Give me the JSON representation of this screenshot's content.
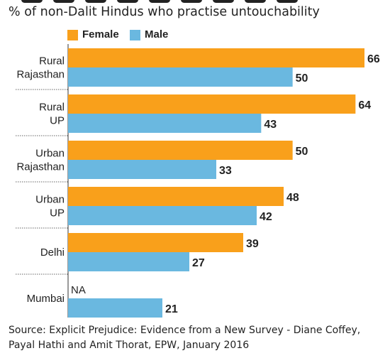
{
  "title": "% of non-Dalit Hindus who practise untouchability",
  "legend": [
    {
      "label": "Female",
      "color": "#f9a01b"
    },
    {
      "label": "Male",
      "color": "#6ab8e0"
    }
  ],
  "chart_data": {
    "type": "bar",
    "orientation": "horizontal",
    "title": "% of non-Dalit Hindus who practise untouchability",
    "categories": [
      [
        "Rural",
        "Rajasthan"
      ],
      [
        "Rural",
        "UP"
      ],
      [
        "Urban",
        "Rajasthan"
      ],
      [
        "Urban",
        "UP"
      ],
      [
        "Delhi"
      ],
      [
        "Mumbai"
      ]
    ],
    "series": [
      {
        "name": "Female",
        "color": "#f9a01b",
        "values": [
          66,
          64,
          50,
          48,
          39,
          null
        ],
        "labels": [
          "66",
          "64",
          "50",
          "48",
          "39",
          "NA"
        ]
      },
      {
        "name": "Male",
        "color": "#6ab8e0",
        "values": [
          50,
          43,
          33,
          42,
          27,
          21
        ],
        "labels": [
          "50",
          "43",
          "33",
          "42",
          "27",
          "21"
        ]
      }
    ],
    "xlim": [
      0,
      66
    ],
    "grid": false,
    "legend_position": "top"
  },
  "source": "Source: Explicit Prejudice: Evidence from a New Survey - Diane Coffey, Payal Hathi and Amit Thorat, EPW, January 2016"
}
